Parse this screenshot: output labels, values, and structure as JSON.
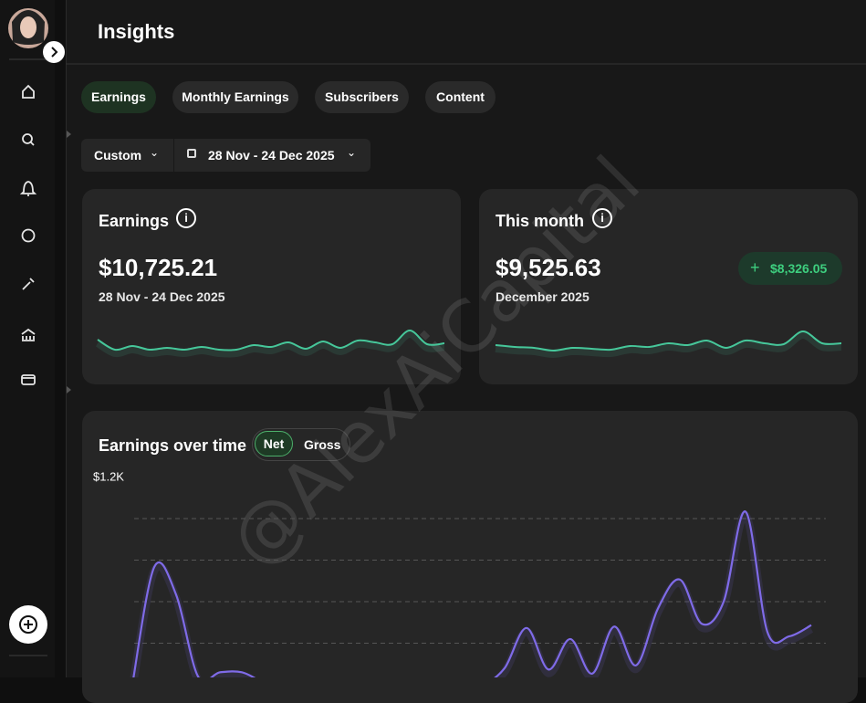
{
  "header": {
    "title": "Insights"
  },
  "tabs": [
    "Earnings",
    "Monthly Earnings",
    "Subscribers",
    "Content"
  ],
  "filters": {
    "period": "Custom",
    "date_range": "28 Nov - 24 Dec 2025"
  },
  "cards": [
    {
      "title": "Earnings",
      "amount": "$10,725.21",
      "subtitle": "28 Nov - 24 Dec 2025",
      "sparkline": {
        "type": "line",
        "values": [
          18,
          7,
          11,
          7,
          9,
          7,
          10,
          7,
          7,
          12,
          10,
          15,
          8,
          16,
          9,
          17,
          15,
          13,
          28,
          13,
          14
        ],
        "ylim": [
          0,
          30
        ],
        "color": "#46c79a"
      }
    },
    {
      "title": "This month",
      "amount": "$9,525.63",
      "subtitle": "December 2025",
      "badge": "$8,326.05",
      "sparkline": {
        "type": "line",
        "values": [
          12,
          10,
          9,
          6,
          9,
          8,
          7,
          11,
          10,
          14,
          12,
          17,
          9,
          17,
          14,
          13,
          27,
          14,
          14
        ],
        "ylim": [
          0,
          30
        ],
        "color": "#46c79a"
      }
    }
  ],
  "earnings_chart": {
    "type": "line",
    "title": "Earnings over time",
    "toggle": [
      "Net",
      "Gross"
    ],
    "values": [
      0,
      850,
      650,
      60,
      90,
      90,
      20,
      0,
      0,
      0,
      0,
      0,
      0,
      0,
      0,
      0,
      0,
      120,
      410,
      110,
      330,
      80,
      420,
      140,
      550,
      760,
      440,
      600,
      1250,
      380,
      350,
      430
    ],
    "ylim": [
      0,
      1200
    ],
    "yticks": [
      {
        "value": 1200,
        "label": "$1.2K"
      }
    ],
    "color": "#7f6be8",
    "grid": true
  },
  "watermark": "@AlexAiCapital"
}
